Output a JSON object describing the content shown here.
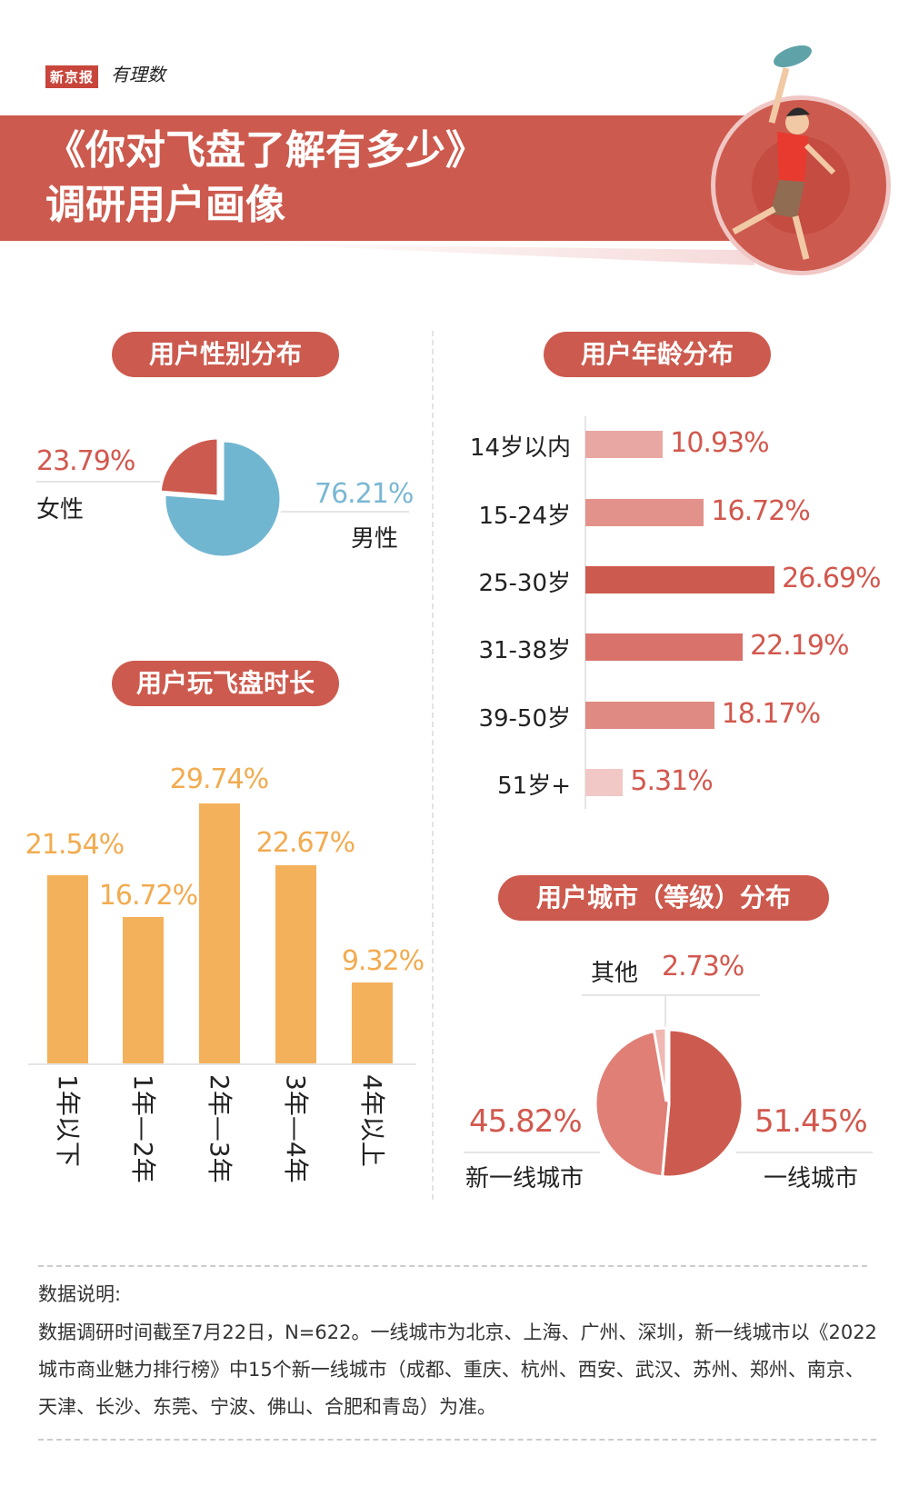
{
  "header": {
    "logo_brand": "新京报",
    "logo_sub": "有理数",
    "title_line1": "《你对飞盘了解有多少》",
    "title_line2": "调研用户画像"
  },
  "colors": {
    "red": "#cd5a4e",
    "blue": "#71b6d1",
    "orange": "#f4b15c",
    "pink": "#e8a7a2"
  },
  "chart_data": [
    {
      "type": "pie",
      "title": "用户性别分布",
      "slices": [
        {
          "label": "女性",
          "value": 23.79,
          "display": "23.79%",
          "color": "#cd5a4e"
        },
        {
          "label": "男性",
          "value": 76.21,
          "display": "76.21%",
          "color": "#71b6d1"
        }
      ]
    },
    {
      "type": "bar",
      "orientation": "horizontal",
      "title": "用户年龄分布",
      "categories": [
        "14岁以内",
        "15-24岁",
        "25-30岁",
        "31-38岁",
        "39-50岁",
        "51岁+"
      ],
      "values": [
        10.93,
        16.72,
        26.69,
        22.19,
        18.17,
        5.31
      ],
      "labels": [
        "10.93%",
        "16.72%",
        "26.69%",
        "22.19%",
        "18.17%",
        "5.31%"
      ],
      "colors": [
        "#e8a7a2",
        "#e3928b",
        "#cd5a4e",
        "#d8726a",
        "#df8a82",
        "#f1c8c5"
      ]
    },
    {
      "type": "bar",
      "title": "用户玩飞盘时长",
      "categories": [
        "1年以下",
        "1年—2年",
        "2年—3年",
        "3年—4年",
        "4年以上"
      ],
      "values": [
        21.54,
        16.72,
        29.74,
        22.67,
        9.32
      ],
      "labels": [
        "21.54%",
        "16.72%",
        "29.74%",
        "22.67%",
        "9.32%"
      ],
      "color": "#f4b15c"
    },
    {
      "type": "pie",
      "title": "用户城市（等级）分布",
      "slices": [
        {
          "label": "一线城市",
          "value": 51.45,
          "display": "51.45%",
          "color": "#cd5a4e"
        },
        {
          "label": "新一线城市",
          "value": 45.82,
          "display": "45.82%",
          "color": "#e07f76"
        },
        {
          "label": "其他",
          "value": 2.73,
          "display": "2.73%",
          "color": "#f0b8b2"
        }
      ]
    }
  ],
  "notes": {
    "heading": "数据说明:",
    "line1": "数据调研时间截至7月22日，N=622。一线城市为北京、上海、广州、深圳，新一线城市以《2022",
    "line2": "城市商业魅力排行榜》中15个新一线城市（成都、重庆、杭州、西安、武汉、苏州、郑州、南京、",
    "line3": "天津、长沙、东莞、宁波、佛山、合肥和青岛）为准。"
  }
}
